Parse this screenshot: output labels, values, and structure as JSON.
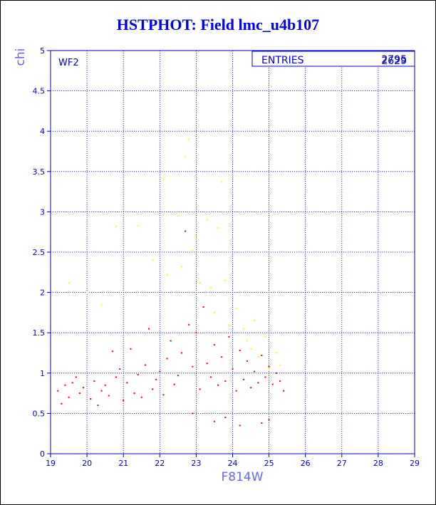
{
  "title": "HSTPHOT: Field lmc_u4b107",
  "chart_data": {
    "type": "scatter",
    "title": "HSTPHOT: Field lmc_u4b107",
    "xlabel": "F814W",
    "ylabel": "chi",
    "xlim": [
      19,
      29
    ],
    "ylim": [
      0,
      5
    ],
    "xticks": [
      "19",
      "20",
      "21",
      "22",
      "23",
      "24",
      "25",
      "26",
      "27",
      "28",
      "29"
    ],
    "yticks": [
      "0",
      "0.5",
      "1",
      "1.5",
      "2",
      "2.5",
      "3",
      "3.5",
      "4",
      "4.5",
      "5"
    ],
    "grid": true,
    "panel_label": "WF2",
    "stats_box": {
      "label": "ENTRIES",
      "value_front": "2795",
      "value_back": "2629"
    },
    "series": [
      {
        "color": "#ee0000",
        "points": [
          [
            19.2,
            0.78
          ],
          [
            19.3,
            0.62
          ],
          [
            19.4,
            0.85
          ],
          [
            19.5,
            0.7
          ],
          [
            19.6,
            0.88
          ],
          [
            19.7,
            0.95
          ],
          [
            19.8,
            0.75
          ],
          [
            19.9,
            0.82
          ],
          [
            20.1,
            0.68
          ],
          [
            20.2,
            0.9
          ],
          [
            20.3,
            0.6
          ],
          [
            20.4,
            0.78
          ],
          [
            20.5,
            0.85
          ],
          [
            20.6,
            0.72
          ],
          [
            20.7,
            1.27
          ],
          [
            20.8,
            0.95
          ],
          [
            20.9,
            1.05
          ],
          [
            21.0,
            0.66
          ],
          [
            21.1,
            0.88
          ],
          [
            21.2,
            1.3
          ],
          [
            21.3,
            0.75
          ],
          [
            21.4,
            0.98
          ],
          [
            21.5,
            0.7
          ],
          [
            21.6,
            1.1
          ],
          [
            21.7,
            1.55
          ],
          [
            21.8,
            0.8
          ],
          [
            21.9,
            0.92
          ],
          [
            22.0,
            1.02
          ],
          [
            22.1,
            0.73
          ],
          [
            22.2,
            1.18
          ],
          [
            22.3,
            1.4
          ],
          [
            22.4,
            0.86
          ],
          [
            22.5,
            0.97
          ],
          [
            22.6,
            1.25
          ],
          [
            22.7,
            2.76
          ],
          [
            22.8,
            1.6
          ],
          [
            22.9,
            1.08
          ],
          [
            23.0,
            1.5
          ],
          [
            23.1,
            0.8
          ],
          [
            23.2,
            1.82
          ],
          [
            23.3,
            1.12
          ],
          [
            23.4,
            0.95
          ],
          [
            23.5,
            1.35
          ],
          [
            23.6,
            0.85
          ],
          [
            23.7,
            1.2
          ],
          [
            23.8,
            0.9
          ],
          [
            23.9,
            1.45
          ],
          [
            24.0,
            1.05
          ],
          [
            24.1,
            0.78
          ],
          [
            24.2,
            1.28
          ],
          [
            24.3,
            0.92
          ],
          [
            24.4,
            1.15
          ],
          [
            24.5,
            0.82
          ],
          [
            24.6,
            1.02
          ],
          [
            24.7,
            0.88
          ],
          [
            24.8,
            1.22
          ],
          [
            24.9,
            0.95
          ],
          [
            25.0,
            1.08
          ],
          [
            25.1,
            0.86
          ],
          [
            25.2,
            1.0
          ],
          [
            25.3,
            0.9
          ],
          [
            25.4,
            0.78
          ],
          [
            23.5,
            0.4
          ],
          [
            24.2,
            0.35
          ],
          [
            24.8,
            0.38
          ],
          [
            25.0,
            0.42
          ],
          [
            23.8,
            0.45
          ],
          [
            22.9,
            0.5
          ]
        ]
      },
      {
        "color": "#ffff00",
        "points": [
          [
            19.5,
            2.12
          ],
          [
            20.0,
            2.0
          ],
          [
            20.4,
            1.85
          ],
          [
            20.8,
            2.82
          ],
          [
            21.4,
            2.83
          ],
          [
            21.8,
            2.4
          ],
          [
            22.1,
            3.4
          ],
          [
            22.2,
            2.22
          ],
          [
            22.5,
            2.95
          ],
          [
            22.6,
            2.32
          ],
          [
            22.7,
            3.68
          ],
          [
            22.8,
            3.9
          ],
          [
            22.9,
            2.52
          ],
          [
            23.0,
            2.7
          ],
          [
            23.1,
            2.12
          ],
          [
            23.3,
            2.9
          ],
          [
            23.4,
            2.06
          ],
          [
            23.6,
            2.8
          ],
          [
            23.7,
            3.37
          ],
          [
            23.8,
            2.15
          ],
          [
            23.9,
            1.6
          ],
          [
            24.1,
            1.8
          ],
          [
            24.3,
            1.55
          ],
          [
            24.5,
            1.3
          ],
          [
            24.7,
            1.2
          ],
          [
            24.9,
            1.45
          ],
          [
            25.0,
            1.05
          ],
          [
            25.2,
            1.25
          ],
          [
            25.3,
            1.1
          ],
          [
            24.6,
            1.65
          ],
          [
            24.4,
            1.4
          ],
          [
            23.5,
            1.75
          ]
        ]
      }
    ]
  }
}
